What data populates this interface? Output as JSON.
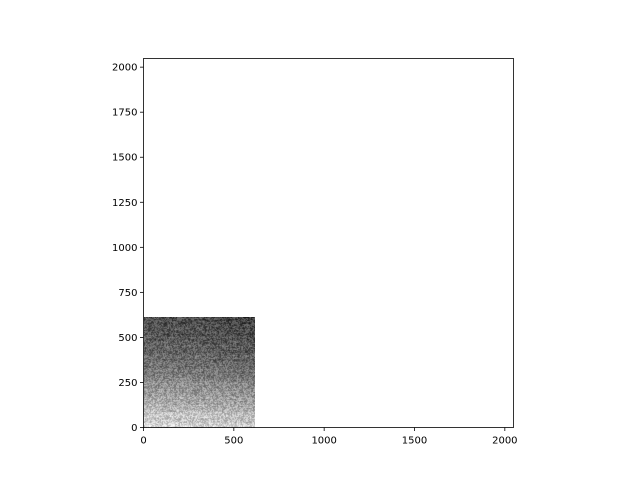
{
  "chart_data": {
    "type": "heatmap",
    "title": "",
    "xlabel": "",
    "ylabel": "",
    "xlim": [
      0,
      2048
    ],
    "ylim": [
      0,
      2048
    ],
    "xticks": [
      0,
      500,
      1000,
      1500,
      2000
    ],
    "yticks": [
      0,
      250,
      500,
      750,
      1000,
      1250,
      1500,
      1750,
      2000
    ],
    "xtick_labels": [
      "0",
      "500",
      "1000",
      "1500",
      "2000"
    ],
    "ytick_labels": [
      "0",
      "250",
      "500",
      "750",
      "1000",
      "1250",
      "1500",
      "1750",
      "2000"
    ],
    "image_extent": {
      "x": [
        0,
        614
      ],
      "y": [
        0,
        614
      ]
    },
    "colormap": "gray",
    "image_description_values": {
      "bottom_intensity": 0.88,
      "top_intensity": 0.32,
      "noise": 0.18
    },
    "grid": false,
    "background_color": "#ffffff"
  }
}
